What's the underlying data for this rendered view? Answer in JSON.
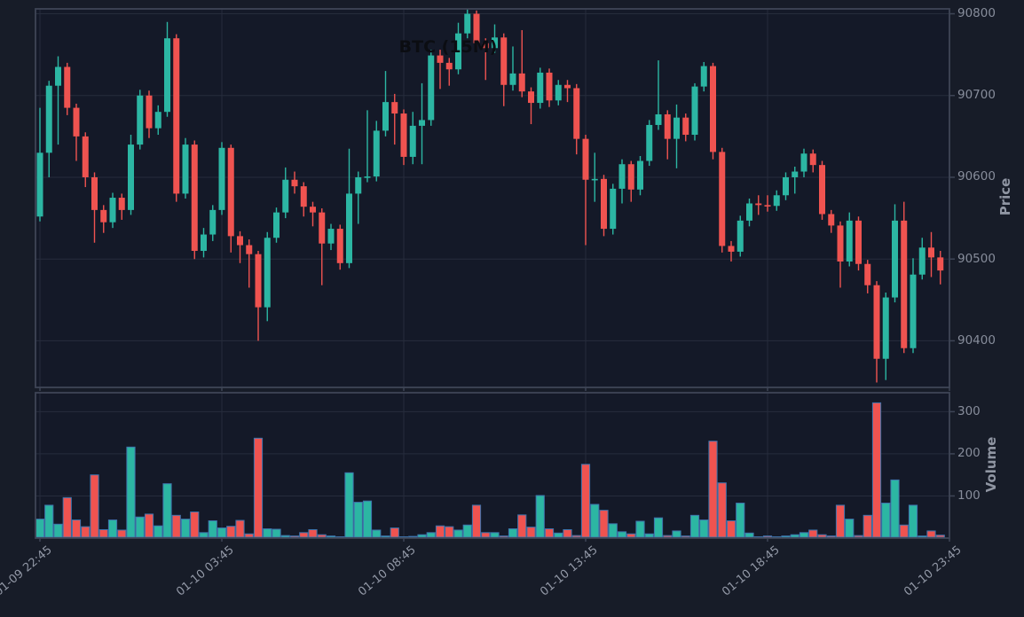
{
  "chart_data": {
    "type": "candlestick_with_volume",
    "title": "BTC (15M)",
    "ylabel_price": "Price",
    "ylabel_volume": "Volume",
    "legend": "none",
    "grid": true,
    "price_axis": {
      "min": 90343,
      "max": 90806,
      "ticks": [
        90400,
        90500,
        90600,
        90700,
        90800
      ]
    },
    "volume_axis": {
      "min": 0,
      "max": 345,
      "ticks": [
        100,
        200,
        300
      ]
    },
    "x_ticks": [
      {
        "pos": 0,
        "label": "01-09 22:45"
      },
      {
        "pos": 20,
        "label": "01-10 03:45"
      },
      {
        "pos": 40,
        "label": "01-10 08:45"
      },
      {
        "pos": 60,
        "label": "01-10 13:45"
      },
      {
        "pos": 80,
        "label": "01-10 18:45"
      },
      {
        "pos": 100,
        "label": "01-10 23:45"
      }
    ],
    "candles": {
      "open": [
        90552,
        90630,
        90712,
        90735,
        90685,
        90650,
        90600,
        90560,
        90545,
        90575,
        90560,
        90640,
        90700,
        90660,
        90680,
        90770,
        90580,
        90640,
        90510,
        90530,
        90560,
        90636,
        90528,
        90517,
        90506,
        90441,
        90526,
        90557,
        90597,
        90589,
        90564,
        90557,
        90519,
        90537,
        90495,
        90580,
        90600,
        90601,
        90657,
        90692,
        90678,
        90625,
        90663,
        90670,
        90749,
        90740,
        90732,
        90776,
        90800,
        90764,
        90758,
        90771,
        90713,
        90727,
        90705,
        90691,
        90728,
        90694,
        90713,
        90709,
        90647,
        90597,
        90598,
        90537,
        90586,
        90616,
        90585,
        90620,
        90664,
        90677,
        90647,
        90673,
        90652,
        90711,
        90736,
        90631,
        90516,
        90509,
        90547,
        90568,
        90566,
        90565,
        90578,
        90600,
        90607,
        90629,
        90615,
        90555,
        90541,
        90497,
        90547,
        90494,
        90468,
        90378,
        90453,
        90547,
        90391,
        90481,
        90514,
        90502
      ],
      "high": [
        90685,
        90718,
        90748,
        90740,
        90690,
        90655,
        90606,
        90566,
        90581,
        90580,
        90652,
        90707,
        90706,
        90688,
        90790,
        90775,
        90648,
        90645,
        90538,
        90566,
        90643,
        90640,
        90534,
        90524,
        90510,
        90533,
        90563,
        90612,
        90607,
        90594,
        90570,
        90562,
        90543,
        90542,
        90635,
        90607,
        90682,
        90669,
        90730,
        90702,
        90683,
        90680,
        90715,
        90756,
        90756,
        90746,
        90789,
        90806,
        90804,
        90770,
        90787,
        90776,
        90760,
        90780,
        90710,
        90734,
        90733,
        90719,
        90719,
        90714,
        90652,
        90630,
        90603,
        90592,
        90622,
        90620,
        90626,
        90670,
        90743,
        90682,
        90689,
        90678,
        90715,
        90741,
        90740,
        90636,
        90522,
        90553,
        90574,
        90578,
        90578,
        90584,
        90606,
        90613,
        90635,
        90634,
        90620,
        90560,
        90546,
        90557,
        90552,
        90499,
        90473,
        90459,
        90567,
        90570,
        90501,
        90526,
        90533,
        90510
      ],
      "low": [
        90546,
        90600,
        90640,
        90676,
        90620,
        90588,
        90520,
        90532,
        90538,
        90548,
        90554,
        90634,
        90648,
        90652,
        90674,
        90570,
        90574,
        90500,
        90502,
        90522,
        90554,
        90508,
        90495,
        90465,
        90400,
        90424,
        90520,
        90550,
        90580,
        90552,
        90540,
        90468,
        90511,
        90487,
        90489,
        90543,
        90594,
        90595,
        90650,
        90640,
        90615,
        90616,
        90616,
        90663,
        90708,
        90712,
        90726,
        90770,
        90756,
        90719,
        90752,
        90687,
        90706,
        90698,
        90665,
        90684,
        90686,
        90688,
        90692,
        90628,
        90517,
        90570,
        90528,
        90530,
        90568,
        90570,
        90578,
        90614,
        90658,
        90622,
        90611,
        90644,
        90645,
        90705,
        90622,
        90508,
        90497,
        90503,
        90540,
        90554,
        90558,
        90559,
        90572,
        90580,
        90600,
        90606,
        90548,
        90532,
        90465,
        90491,
        90486,
        90458,
        90349,
        90352,
        90447,
        90385,
        90385,
        90475,
        90478,
        90469
      ],
      "close": [
        90630,
        90712,
        90735,
        90685,
        90650,
        90600,
        90560,
        90545,
        90575,
        90560,
        90640,
        90700,
        90660,
        90680,
        90770,
        90580,
        90640,
        90510,
        90530,
        90560,
        90636,
        90528,
        90517,
        90506,
        90441,
        90526,
        90557,
        90597,
        90589,
        90564,
        90557,
        90519,
        90537,
        90495,
        90580,
        90600,
        90601,
        90657,
        90692,
        90678,
        90625,
        90663,
        90670,
        90749,
        90740,
        90732,
        90776,
        90800,
        90764,
        90758,
        90771,
        90713,
        90727,
        90705,
        90691,
        90728,
        90694,
        90713,
        90709,
        90647,
        90597,
        90598,
        90537,
        90586,
        90616,
        90585,
        90620,
        90664,
        90677,
        90647,
        90673,
        90652,
        90711,
        90736,
        90631,
        90516,
        90509,
        90547,
        90568,
        90566,
        90565,
        90578,
        90600,
        90607,
        90629,
        90615,
        90555,
        90541,
        90497,
        90547,
        90494,
        90468,
        90378,
        90453,
        90547,
        90391,
        90481,
        90514,
        90502,
        90486
      ],
      "volume": [
        45,
        78,
        33,
        96,
        43,
        27,
        150,
        20,
        43,
        19,
        216,
        50,
        57,
        29,
        129,
        54,
        45,
        62,
        13,
        41,
        24,
        28,
        42,
        10,
        237,
        22,
        21,
        6,
        5,
        13,
        20,
        8,
        5,
        3,
        155,
        85,
        88,
        19,
        5,
        24,
        3,
        4,
        8,
        13,
        29,
        27,
        19,
        31,
        78,
        13,
        13,
        5,
        22,
        55,
        26,
        101,
        22,
        12,
        20,
        6,
        175,
        80,
        66,
        34,
        15,
        10,
        40,
        10,
        48,
        6,
        17,
        5,
        54,
        43,
        230,
        131,
        41,
        83,
        12,
        3,
        5,
        3,
        5,
        8,
        13,
        19,
        8,
        5,
        78,
        45,
        6,
        54,
        321,
        83,
        138,
        31,
        78,
        5,
        17,
        7
      ]
    },
    "colors": {
      "up": "#2cb6a3",
      "down": "#ef5350",
      "volume_edge": "#3f74ad",
      "grid": "#262c3c",
      "spine": "#3e4556",
      "axes_bg": "#141928",
      "figure_bg": "#171c28",
      "tick_label": "#878d9b",
      "axis_label": "#8f95a2",
      "title": "#0b0d12"
    }
  }
}
